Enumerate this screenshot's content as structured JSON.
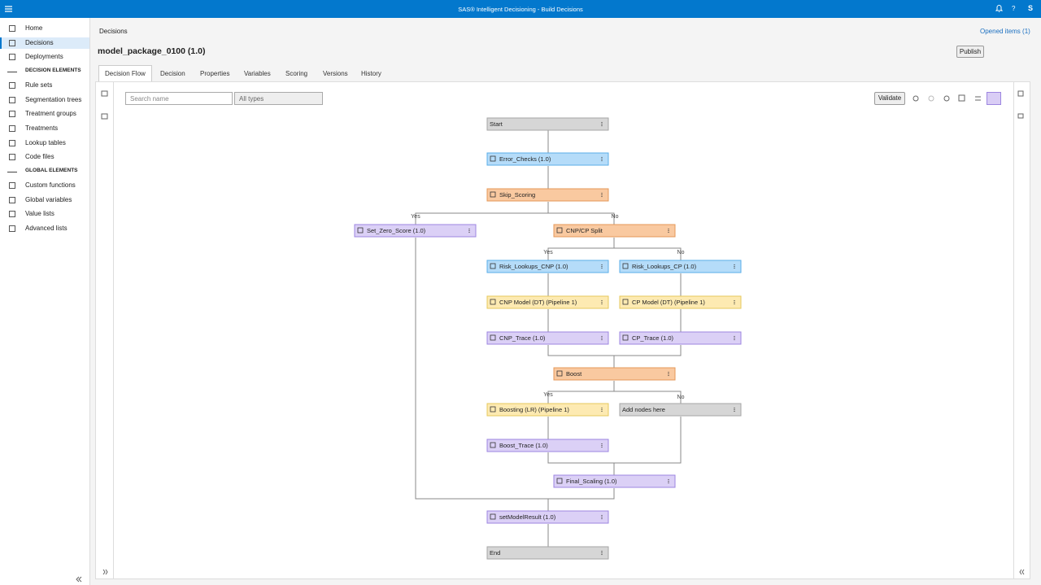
{
  "header": {
    "title": "SAS® Intelligent Decisioning - Build Decisions",
    "help": "?",
    "user": "S"
  },
  "sidebar": {
    "items": [
      "Home",
      "Decisions",
      "Deployments",
      "DECISION ELEMENTS",
      "Rule sets",
      "Segmentation trees",
      "Treatment groups",
      "Treatments",
      "Lookup tables",
      "Code files",
      "GLOBAL ELEMENTS",
      "Custom functions",
      "Global variables",
      "Value lists",
      "Advanced lists"
    ]
  },
  "breadcrumb": "Decisions",
  "opened_items": "Opened items (1)",
  "object_title": "model_package_0100 (1.0)",
  "publish": "Publish",
  "tabs": [
    "Decision Flow",
    "Decision",
    "Properties",
    "Variables",
    "Scoring",
    "Versions",
    "History"
  ],
  "toolbar": {
    "search_placeholder": "Search name",
    "type_filter": "All types",
    "validate": "Validate"
  },
  "flow": {
    "nodes": [
      "Start",
      "Error_Checks (1.0)",
      "Skip_Scoring",
      "Set_Zero_Score (1.0)",
      "CNP/CP Split",
      "Risk_Lookups_CNP (1.0)",
      "Risk_Lookups_CP (1.0)",
      "CNP Model (DT) (Pipeline 1)",
      "CP Model (DT) (Pipeline 1)",
      "CNP_Trace (1.0)",
      "CP_Trace (1.0)",
      "Boost",
      "Boosting (LR) (Pipeline 1)",
      "Add nodes here",
      "Boost_Trace (1.0)",
      "Final_Scaling (1.0)",
      "setModelResult (1.0)",
      "End"
    ],
    "branch_labels": [
      "Yes",
      "No",
      "Yes",
      "No",
      "Yes",
      "No"
    ]
  }
}
